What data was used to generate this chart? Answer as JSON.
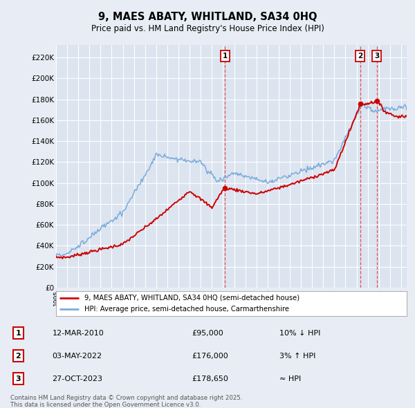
{
  "title": "9, MAES ABATY, WHITLAND, SA34 0HQ",
  "subtitle": "Price paid vs. HM Land Registry's House Price Index (HPI)",
  "ylabel_ticks": [
    "£0",
    "£20K",
    "£40K",
    "£60K",
    "£80K",
    "£100K",
    "£120K",
    "£140K",
    "£160K",
    "£180K",
    "£200K",
    "£220K"
  ],
  "ytick_values": [
    0,
    20000,
    40000,
    60000,
    80000,
    100000,
    120000,
    140000,
    160000,
    180000,
    200000,
    220000
  ],
  "ylim": [
    0,
    232000
  ],
  "xlim": [
    1995,
    2026.5
  ],
  "legend_entries": [
    "9, MAES ABATY, WHITLAND, SA34 0HQ (semi-detached house)",
    "HPI: Average price, semi-detached house, Carmarthenshire"
  ],
  "legend_colors": [
    "#cc0000",
    "#7aabdb"
  ],
  "transactions": [
    {
      "label": "1",
      "date": "12-MAR-2010",
      "price": 95000,
      "hpi_rel": "10% ↓ HPI",
      "x_year": 2010.19
    },
    {
      "label": "2",
      "date": "03-MAY-2022",
      "price": 176000,
      "hpi_rel": "3% ↑ HPI",
      "x_year": 2022.33
    },
    {
      "label": "3",
      "date": "27-OCT-2023",
      "price": 178650,
      "hpi_rel": "≈ HPI",
      "x_year": 2023.82
    }
  ],
  "footnote1": "Contains HM Land Registry data © Crown copyright and database right 2025.",
  "footnote2": "This data is licensed under the Open Government Licence v3.0.",
  "bg_color": "#e8edf5",
  "plot_bg": "#dce4f0",
  "grid_color": "#ffffff",
  "hpi_line_color": "#7aabdb",
  "price_line_color": "#cc0000",
  "dashed_line_color": "#dd4444"
}
